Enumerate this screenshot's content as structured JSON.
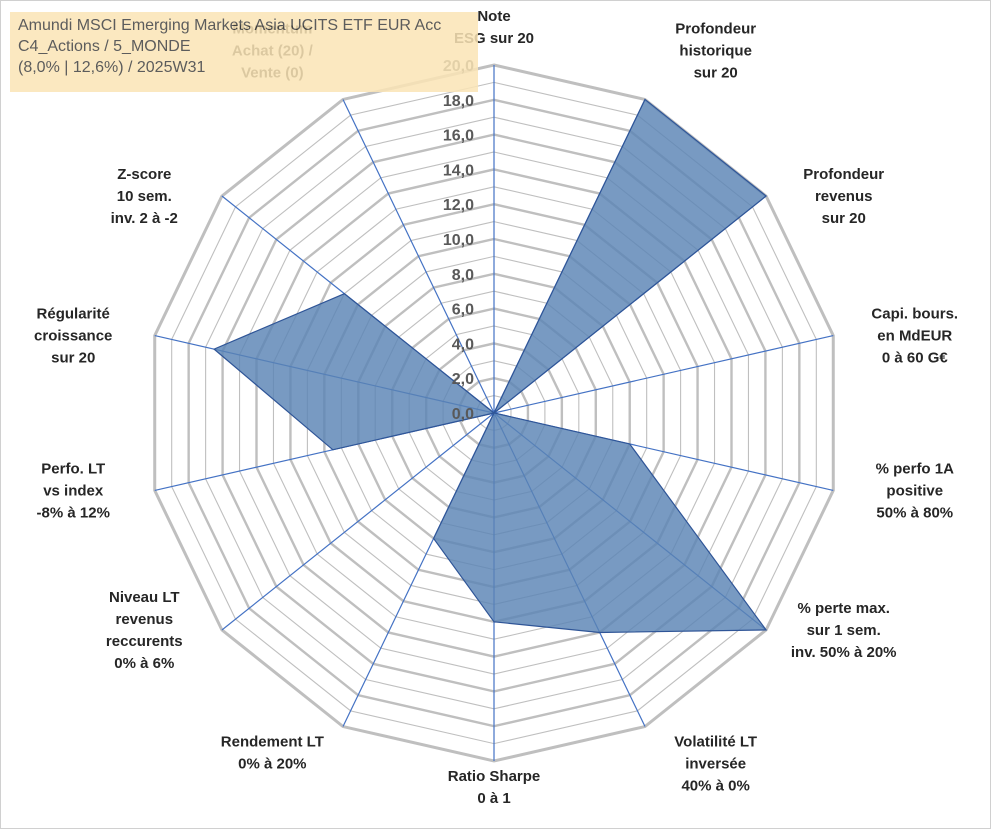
{
  "title_box": {
    "line1": "Amundi MSCI Emerging Markets Asia UCITS ETF EUR Acc",
    "line2": "C4_Actions / 5_MONDE",
    "line3": "(8,0% | 12,6%) / 2025W31"
  },
  "chart_data": {
    "type": "radar",
    "title": "",
    "rlim": [
      0,
      20
    ],
    "ticks": [
      "0,0",
      "2,0",
      "4,0",
      "6,0",
      "8,0",
      "10,0",
      "12,0",
      "14,0",
      "16,0",
      "18,0",
      "20,0"
    ],
    "tick_values": [
      0,
      2,
      4,
      6,
      8,
      10,
      12,
      14,
      16,
      18,
      20
    ],
    "grid": true,
    "legend": "none",
    "fill_color": "#5a84b4",
    "line_color": "#2f5597",
    "grid_color": "#bfbfbf",
    "axis_line_color": "#4472c4",
    "categories": [
      [
        "Note",
        "ESG sur 20"
      ],
      [
        "Profondeur",
        "historique",
        "sur 20"
      ],
      [
        "Profondeur",
        "revenus",
        "sur 20"
      ],
      [
        "Capi. bours.",
        "en MdEUR",
        "0 à 60 G€"
      ],
      [
        "% perfo 1A",
        "positive",
        "50% à 80%"
      ],
      [
        "% perte max.",
        "sur 1 sem.",
        "inv. 50% à 20%"
      ],
      [
        "Volatilité LT",
        "inversée",
        "40% à 0%"
      ],
      [
        "Ratio Sharpe",
        "0 à 1"
      ],
      [
        "Rendement LT",
        "0% à 20%"
      ],
      [
        "Niveau LT",
        "revenus",
        "reccurents",
        "0% à 6%"
      ],
      [
        "Perfo. LT",
        "vs index",
        "-8% à 12%"
      ],
      [
        "Régularité",
        "croissance",
        "sur 20"
      ],
      [
        "Z-score",
        "10 sem.",
        "inv. 2 à -2"
      ],
      [
        "Momentum",
        "Achat (20) /",
        "Vente (0)"
      ]
    ],
    "values": [
      0,
      20,
      20,
      0,
      8,
      20,
      14,
      12,
      8,
      0,
      9.5,
      16.5,
      11,
      0
    ]
  }
}
